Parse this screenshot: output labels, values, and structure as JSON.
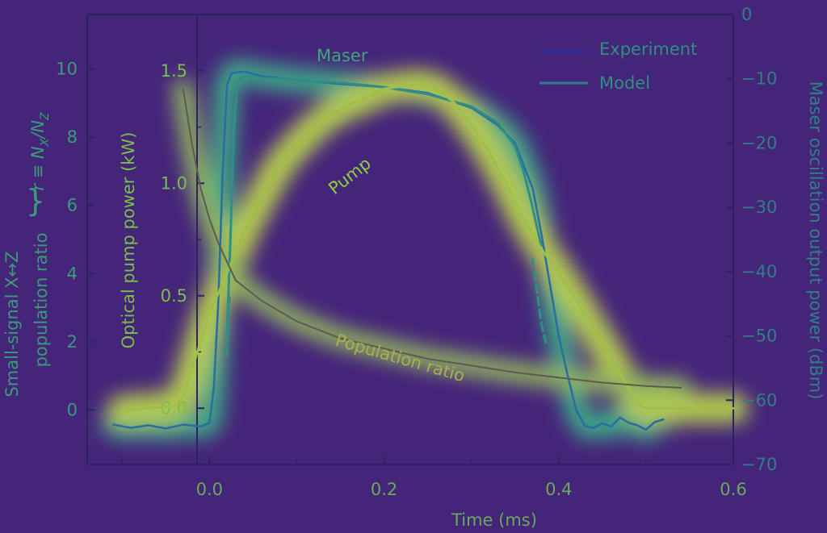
{
  "chart_data": {
    "type": "line",
    "xlabel": "Time (ms)",
    "x_ticks": [
      "0.0",
      "0.2",
      "0.4",
      "0.6"
    ],
    "xlim": [
      -0.14,
      0.6
    ],
    "axes": {
      "ratio": {
        "label_line1": "Small-signal X↔Z",
        "label_line2": "population ratio",
        "label_extra": "r ≡ N",
        "label_sub_x": "X",
        "label_slash": "/N",
        "label_sub_z": "Z",
        "ticks": [
          "0",
          "2",
          "4",
          "6",
          "8",
          "10"
        ],
        "ylim": [
          -1.6,
          11.6
        ]
      },
      "pump": {
        "label": "Optical pump power (kW)",
        "ticks": [
          "0.0",
          "0.5",
          "1.0",
          "1.5"
        ],
        "ylim": [
          -0.25,
          1.75
        ]
      },
      "maser": {
        "label": "Maser oscillation output power (dBm)",
        "ticks": [
          "0",
          "−10",
          "−20",
          "−30",
          "−40",
          "−50",
          "−60",
          "−70"
        ],
        "ylim": [
          -70,
          0
        ]
      }
    },
    "legend": {
      "position": "top-right",
      "entries": [
        "Experiment",
        "Model"
      ]
    },
    "annotations": {
      "maser": "Maser",
      "pump": "Pump",
      "population": "Population ratio"
    },
    "series": [
      {
        "name": "Experiment",
        "axis": "maser",
        "x": [
          -0.11,
          -0.09,
          -0.07,
          -0.05,
          -0.03,
          -0.01,
          0.0,
          0.005,
          0.01,
          0.015,
          0.02,
          0.025,
          0.03,
          0.04,
          0.06,
          0.1,
          0.15,
          0.2,
          0.25,
          0.3,
          0.33,
          0.35,
          0.37,
          0.38,
          0.39,
          0.4,
          0.41,
          0.42,
          0.43,
          0.44,
          0.45,
          0.46,
          0.47,
          0.48,
          0.49,
          0.5,
          0.51,
          0.52
        ],
        "y": [
          -63.8,
          -64.3,
          -63.9,
          -64.4,
          -63.8,
          -64.1,
          -63.5,
          -58,
          -45,
          -25,
          -11,
          -9.2,
          -9.0,
          -8.9,
          -9.6,
          -10.2,
          -10.8,
          -11.3,
          -12.2,
          -14.5,
          -17.2,
          -20.0,
          -27,
          -34,
          -42,
          -50,
          -56,
          -61.5,
          -64,
          -64.3,
          -63.6,
          -64.1,
          -62.7,
          -63.5,
          -63.9,
          -64.6,
          -63.4,
          -63.0
        ]
      },
      {
        "name": "Model",
        "axis": "maser",
        "x": [
          0.02,
          0.024,
          0.028,
          0.032,
          0.04,
          0.06,
          0.1,
          0.15,
          0.2,
          0.25,
          0.3,
          0.33,
          0.35,
          0.36,
          0.37,
          0.38
        ],
        "y": [
          -50,
          -35,
          -18,
          -10.4,
          -9.6,
          -9.9,
          -10.2,
          -10.6,
          -11.3,
          -12.4,
          -14.3,
          -16.8,
          -20.5,
          -24.5,
          -30,
          -36
        ]
      },
      {
        "name": "Model tail",
        "axis": "maser",
        "x": [
          0.02,
          0.021,
          0.022,
          0.023
        ],
        "y": [
          -53,
          -50,
          -47,
          -44
        ]
      },
      {
        "name": "Model drop tail",
        "axis": "maser",
        "x": [
          0.37,
          0.375,
          0.38,
          0.385
        ],
        "y": [
          -38,
          -43,
          -48,
          -51
        ]
      },
      {
        "name": "Pump",
        "axis": "pump",
        "x": [
          -0.1,
          -0.07,
          -0.04,
          -0.03,
          -0.02,
          -0.01,
          0.0,
          0.02,
          0.04,
          0.06,
          0.08,
          0.1,
          0.12,
          0.14,
          0.16,
          0.18,
          0.2,
          0.22,
          0.24,
          0.26,
          0.28,
          0.3,
          0.32,
          0.34,
          0.36,
          0.38,
          0.4,
          0.42,
          0.44,
          0.46,
          0.48,
          0.49,
          0.5,
          0.55,
          0.6
        ],
        "y": [
          -0.01,
          0.0,
          0.01,
          0.05,
          0.17,
          0.3,
          0.42,
          0.6,
          0.79,
          0.94,
          1.08,
          1.17,
          1.25,
          1.31,
          1.35,
          1.38,
          1.42,
          1.43,
          1.44,
          1.42,
          1.36,
          1.26,
          1.14,
          1.0,
          0.84,
          0.71,
          0.6,
          0.48,
          0.35,
          0.22,
          0.09,
          0.02,
          0.0,
          0.0,
          0.0
        ]
      },
      {
        "name": "Population ratio",
        "axis": "ratio",
        "x": [
          -0.03,
          -0.02,
          -0.01,
          0.0,
          0.01,
          0.03,
          0.06,
          0.1,
          0.15,
          0.2,
          0.25,
          0.3,
          0.35,
          0.4,
          0.45,
          0.5,
          0.54
        ],
        "y": [
          9.4,
          7.8,
          6.5,
          5.6,
          4.9,
          3.8,
          3.2,
          2.6,
          2.1,
          1.8,
          1.5,
          1.3,
          1.1,
          0.95,
          0.8,
          0.7,
          0.65
        ]
      }
    ],
    "colors": {
      "experiment": "#2e2aa0",
      "model": "#2a7f8a",
      "pump": "#8fce3f",
      "population": "#6b6f4a",
      "axis_ratio": "#3b9a78",
      "axis_pump": "#7bbf4a",
      "axis_maser": "#2f7f86",
      "background": "#45257a"
    }
  }
}
